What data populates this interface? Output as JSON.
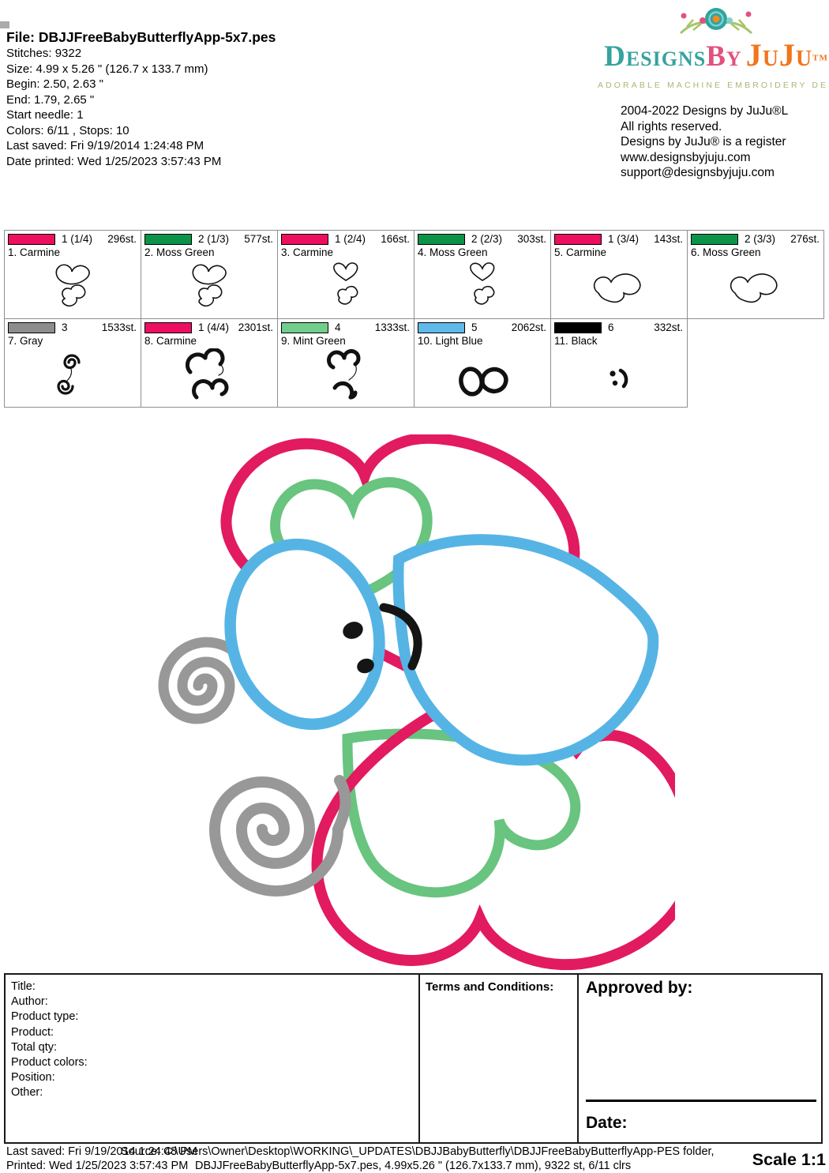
{
  "header": {
    "file_label": "File: DBJJFreeBabyButterflyApp-5x7.pes",
    "stitches": "Stitches: 9322",
    "size": "Size: 4.99 x 5.26 \" (126.7 x 133.7 mm)",
    "begin": "Begin: 2.50, 2.63 \"",
    "end": "End: 1.79, 2.65 \"",
    "start_needle": "Start needle: 1",
    "colors": "Colors: 6/11 , Stops: 10",
    "last_saved": "Last saved: Fri 9/19/2014 1:24:48 PM",
    "date_printed": "Date printed: Wed 1/25/2023 3:57:43 PM"
  },
  "logo": {
    "brand_designs": "Designs",
    "brand_by": "By",
    "brand_juju": "JuJu",
    "tm": "TM",
    "tagline": "ADORABLE MACHINE EMBROIDERY DESIGNS",
    "copyright_lines": [
      "2004-2022 Designs by JuJu®L",
      "All rights reserved.",
      "Designs by JuJu® is a register",
      "www.designsbyjuju.com",
      "support@designsbyjuju.com"
    ]
  },
  "color_blocks": {
    "cells": [
      {
        "num": "1 (1/4)",
        "stitches": "296st.",
        "name": "1. Carmine",
        "color_hex": "#ed0e60",
        "thumb": "hearts-pair"
      },
      {
        "num": "2 (1/3)",
        "stitches": "577st.",
        "name": "2. Moss Green",
        "color_hex": "#0b9449",
        "thumb": "hearts-pair"
      },
      {
        "num": "1 (2/4)",
        "stitches": "166st.",
        "name": "3. Carmine",
        "color_hex": "#ed0e60",
        "thumb": "heart-blob"
      },
      {
        "num": "2 (2/3)",
        "stitches": "303st.",
        "name": "4. Moss Green",
        "color_hex": "#0b9449",
        "thumb": "heart-blob"
      },
      {
        "num": "1 (3/4)",
        "stitches": "143st.",
        "name": "5. Carmine",
        "color_hex": "#ed0e60",
        "thumb": "peanut"
      },
      {
        "num": "2 (3/3)",
        "stitches": "276st.",
        "name": "6. Moss Green",
        "color_hex": "#0b9449",
        "thumb": "peanut"
      },
      {
        "num": "3",
        "stitches": "1533st.",
        "name": "7. Gray",
        "color_hex": "#8d8d8d",
        "thumb": "spirals"
      },
      {
        "num": "1 (4/4)",
        "stitches": "2301st.",
        "name": "8. Carmine",
        "color_hex": "#ed0e60",
        "thumb": "thick-cloud"
      },
      {
        "num": "4",
        "stitches": "1333st.",
        "name": "9. Mint Green",
        "color_hex": "#72ce8c",
        "thumb": "thick-heart"
      },
      {
        "num": "5",
        "stitches": "2062st.",
        "name": "10. Light Blue",
        "color_hex": "#5fb9ea",
        "thumb": "ovals"
      },
      {
        "num": "6",
        "stitches": "332st.",
        "name": "11. Black",
        "color_hex": "#000000",
        "thumb": "tiny-face"
      }
    ]
  },
  "design": {
    "description": "baby butterfly applique embroidery preview",
    "colors": {
      "carmine": "#e21a60",
      "mint": "#68c47f",
      "light_blue": "#56b4e5",
      "gray": "#989898",
      "black": "#151515"
    }
  },
  "form": {
    "left_fields": [
      "Title:",
      "Author:",
      "Product type:",
      "Product:",
      "Total qty:",
      "Product colors:",
      "Position:",
      "Other:"
    ],
    "terms_label": "Terms and Conditions:",
    "approved_label": "Approved by:",
    "date_label": "Date:"
  },
  "footer": {
    "last_saved": "Last saved: Fri 9/19/2014 1:24:48 PM",
    "printed": "Printed: Wed 1/25/2023 3:57:43 PM",
    "source": "Source: C:\\Users\\Owner\\Desktop\\WORKING\\_UPDATES\\DBJJBabyButterfly\\DBJJFreeBabyButterflyApp-PES folder,",
    "file_info": "DBJJFreeBabyButterflyApp-5x7.pes, 4.99x5.26 \" (126.7x133.7 mm), 9322 st, 6/11 clrs",
    "scale": "Scale 1:1"
  }
}
